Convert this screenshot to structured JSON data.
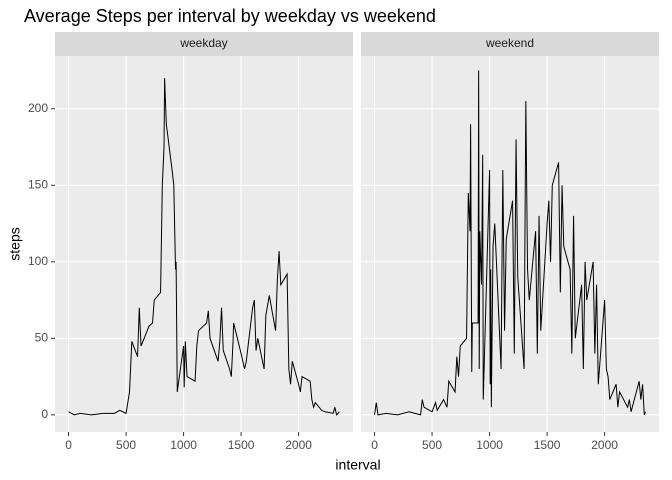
{
  "chart_data": {
    "type": "line",
    "title": "Average Steps per interval by weekday vs weekend",
    "x_label": "interval",
    "y_label": "steps",
    "xlim": [
      -117.75,
      2472.75
    ],
    "ylim": [
      -11.2,
      234.5
    ],
    "xticks": [
      0,
      500,
      1000,
      1500,
      2000
    ],
    "yticks": [
      0,
      50,
      100,
      150,
      200
    ],
    "grid": true,
    "series": [
      {
        "name": "weekday",
        "color": "#000000",
        "x": [
          0,
          25,
          50,
          100,
          200,
          300,
          400,
          445,
          500,
          530,
          550,
          600,
          615,
          630,
          700,
          730,
          745,
          800,
          815,
          830,
          835,
          845,
          850,
          900,
          915,
          930,
          935,
          945,
          1000,
          1005,
          1015,
          1030,
          1100,
          1115,
          1130,
          1200,
          1215,
          1230,
          1300,
          1315,
          1330,
          1345,
          1400,
          1415,
          1430,
          1435,
          1500,
          1530,
          1545,
          1600,
          1615,
          1630,
          1645,
          1700,
          1715,
          1745,
          1800,
          1815,
          1830,
          1845,
          1900,
          1915,
          1930,
          1945,
          2000,
          2015,
          2030,
          2100,
          2115,
          2130,
          2145,
          2200,
          2230,
          2300,
          2315,
          2330,
          2355
        ],
        "values": [
          2,
          1,
          0,
          1,
          0,
          1,
          1,
          3,
          1,
          15,
          48,
          38,
          70,
          45,
          58,
          60,
          75,
          80,
          150,
          175,
          220,
          200,
          190,
          160,
          150,
          95,
          100,
          15,
          45,
          18,
          48,
          25,
          22,
          45,
          55,
          60,
          68,
          50,
          35,
          48,
          70,
          42,
          30,
          25,
          48,
          60,
          40,
          30,
          35,
          70,
          75,
          42,
          50,
          30,
          65,
          78,
          55,
          88,
          107,
          85,
          92,
          30,
          20,
          35,
          20,
          15,
          25,
          22,
          10,
          5,
          8,
          3,
          2,
          1,
          5,
          0,
          2
        ]
      },
      {
        "name": "weekend",
        "color": "#000000",
        "x": [
          0,
          15,
          30,
          100,
          200,
          300,
          400,
          415,
          430,
          500,
          530,
          545,
          600,
          630,
          645,
          700,
          715,
          730,
          745,
          800,
          815,
          830,
          835,
          845,
          850,
          900,
          905,
          910,
          915,
          930,
          940,
          945,
          1000,
          1005,
          1010,
          1015,
          1030,
          1045,
          1100,
          1115,
          1130,
          1145,
          1200,
          1215,
          1230,
          1245,
          1300,
          1315,
          1330,
          1345,
          1400,
          1415,
          1430,
          1445,
          1500,
          1515,
          1530,
          1545,
          1600,
          1615,
          1630,
          1645,
          1700,
          1715,
          1730,
          1745,
          1800,
          1815,
          1830,
          1845,
          1900,
          1915,
          1930,
          1945,
          2000,
          2015,
          2030,
          2045,
          2100,
          2115,
          2130,
          2200,
          2215,
          2230,
          2300,
          2315,
          2330,
          2345,
          2355
        ],
        "values": [
          0,
          8,
          0,
          1,
          0,
          2,
          0,
          10,
          5,
          2,
          8,
          3,
          10,
          5,
          22,
          15,
          38,
          25,
          45,
          50,
          145,
          120,
          190,
          28,
          60,
          60,
          225,
          30,
          120,
          85,
          170,
          10,
          160,
          20,
          95,
          5,
          110,
          125,
          30,
          160,
          55,
          115,
          140,
          40,
          180,
          90,
          30,
          205,
          95,
          75,
          120,
          40,
          130,
          55,
          125,
          140,
          100,
          150,
          165,
          80,
          150,
          110,
          95,
          40,
          130,
          50,
          85,
          30,
          100,
          75,
          100,
          40,
          85,
          20,
          75,
          30,
          25,
          10,
          20,
          5,
          15,
          5,
          10,
          2,
          22,
          10,
          20,
          0,
          2
        ]
      }
    ]
  }
}
